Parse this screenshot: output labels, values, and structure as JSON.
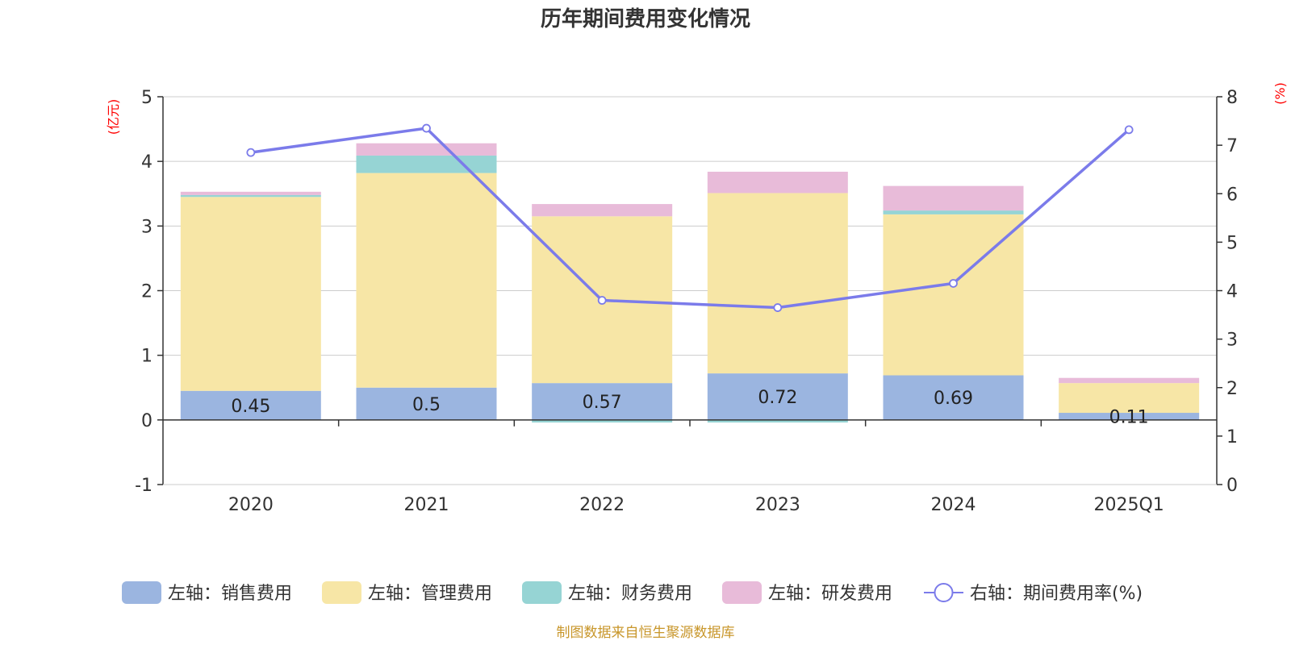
{
  "chart_data": {
    "type": "bar",
    "title": "历年期间费用变化情况",
    "categories": [
      "2020",
      "2021",
      "2022",
      "2023",
      "2024",
      "2025Q1"
    ],
    "left_axis": {
      "unit": "(亿元)",
      "ylim": [
        -1,
        5
      ],
      "ticks": [
        -1,
        0,
        1,
        2,
        3,
        4,
        5
      ]
    },
    "right_axis": {
      "unit": "(%)",
      "ylim": [
        0,
        8
      ],
      "ticks": [
        0,
        1,
        2,
        3,
        4,
        5,
        6,
        7,
        8
      ]
    },
    "grid": true,
    "legend_position": "bottom",
    "series": [
      {
        "name": "左轴：销售费用",
        "type": "bar",
        "stack": "cost",
        "color": "#9bb5e0",
        "values": [
          0.45,
          0.5,
          0.57,
          0.72,
          0.69,
          0.11
        ],
        "labels": [
          "0.45",
          "0.5",
          "0.57",
          "0.72",
          "0.69",
          "0.11"
        ]
      },
      {
        "name": "左轴：管理费用",
        "type": "bar",
        "stack": "cost",
        "color": "#f7e6a6",
        "values": [
          3.0,
          3.32,
          2.58,
          2.79,
          2.49,
          0.46
        ]
      },
      {
        "name": "左轴：财务费用",
        "type": "bar",
        "stack": "cost",
        "color": "#96d4d4",
        "values": [
          0.03,
          0.27,
          -0.04,
          -0.04,
          0.06,
          0.0
        ]
      },
      {
        "name": "左轴：研发费用",
        "type": "bar",
        "stack": "cost",
        "color": "#e8bbd9",
        "values": [
          0.05,
          0.19,
          0.19,
          0.33,
          0.38,
          0.08
        ]
      },
      {
        "name": "右轴：期间费用率(%)",
        "type": "line",
        "axis": "right",
        "color": "#7b7bea",
        "values": [
          6.85,
          7.35,
          3.8,
          3.65,
          4.15,
          7.32
        ]
      }
    ]
  },
  "source": "制图数据来自恒生聚源数据库"
}
